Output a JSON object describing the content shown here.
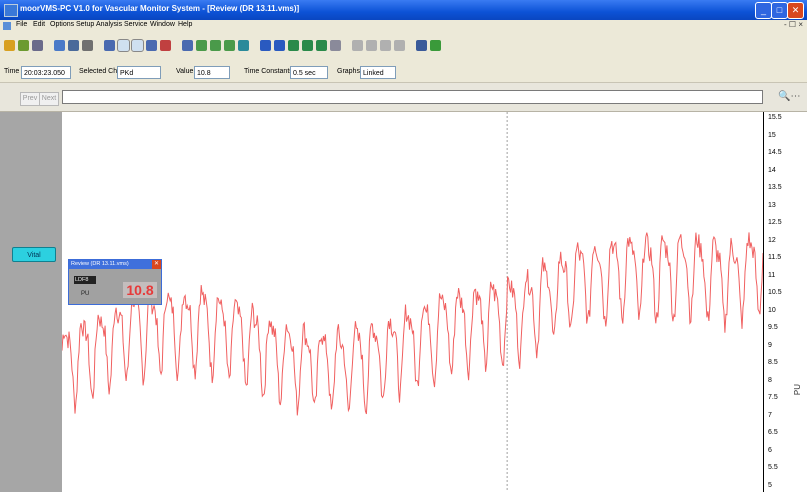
{
  "window": {
    "title": "moorVMS-PC V1.0 for Vascular Monitor System - [Review (DR 13.11.vms)]",
    "controls": {
      "minimize": "_",
      "maximize": "□",
      "close": "✕"
    }
  },
  "menu": {
    "items": [
      "File",
      "Edit",
      "Options",
      "Setup",
      "Analysis",
      "Service",
      "Window",
      "Help"
    ],
    "mdi_controls": "- ☐ ×"
  },
  "toolbar": {
    "groups": [
      {
        "buttons": [
          {
            "icon": "gear-icon",
            "color": "#d8a020"
          },
          {
            "icon": "data-icon",
            "color": "#6c9a30"
          },
          {
            "icon": "archive-icon",
            "color": "#6a6a8a"
          }
        ]
      },
      {
        "buttons": [
          {
            "icon": "display-icon",
            "color": "#4a7ac8"
          },
          {
            "icon": "list-icon",
            "color": "#4a6a9a"
          },
          {
            "icon": "print-icon",
            "color": "#707070"
          }
        ]
      },
      {
        "buttons": [
          {
            "icon": "trace-icon",
            "color": "#4a6ab0"
          },
          {
            "icon": "trace-overlay-icon",
            "color": "#4a6ab0",
            "pressed": true
          },
          {
            "icon": "trace-split-icon",
            "color": "#4a6ab0",
            "pressed": true
          },
          {
            "icon": "marker-icon",
            "color": "#4a6ab0"
          },
          {
            "icon": "scale-icon",
            "color": "#c04040"
          }
        ]
      },
      {
        "buttons": [
          {
            "icon": "compress-icon",
            "color": "#4a6ab0"
          },
          {
            "icon": "zoom-out-icon",
            "color": "#4a9a4a"
          },
          {
            "icon": "zoom-in-icon",
            "color": "#4a9a4a"
          },
          {
            "icon": "zoom-region-icon",
            "color": "#4a9a4a"
          },
          {
            "icon": "arrow-down-icon",
            "color": "#2a8a9a"
          }
        ]
      },
      {
        "buttons": [
          {
            "icon": "to-icon",
            "color": "#2a5ac0"
          },
          {
            "icon": "tc-icon",
            "color": "#2a5ac0"
          },
          {
            "icon": "flow-marker-icon",
            "color": "#2a8a4a"
          },
          {
            "icon": "flow-marker-icon",
            "color": "#2a8a4a"
          },
          {
            "icon": "flow-compare-icon",
            "color": "#2a8a4a"
          },
          {
            "icon": "flow-scale-icon",
            "color": "#8a8a9a"
          }
        ]
      },
      {
        "buttons": [
          {
            "icon": "page-icon",
            "color": "#b0b0b0"
          },
          {
            "icon": "grid-icon",
            "color": "#b0b0b0"
          },
          {
            "icon": "table-icon",
            "color": "#b0b0b0"
          },
          {
            "icon": "calc-icon",
            "color": "#b0b0b0"
          }
        ]
      },
      {
        "buttons": [
          {
            "icon": "printer-icon",
            "color": "#3a5a9a"
          },
          {
            "icon": "globe-icon",
            "color": "#3a9a3a"
          }
        ]
      }
    ]
  },
  "fields": [
    {
      "label": "Time",
      "value": "20:03:23.050"
    },
    {
      "label": "Selected Ch",
      "value": "PKd"
    },
    {
      "label": "Value",
      "value": "10.8"
    },
    {
      "label": "Time Constants",
      "value": "0.5 sec"
    },
    {
      "label": "Graphs",
      "value": "Linked"
    }
  ],
  "navigation": {
    "prev_label": "Prev",
    "next_label": "Next",
    "search_icon": "binoculars-icon"
  },
  "left_panel": {
    "channel_button": "Vital"
  },
  "channel_panel": {
    "title": "Review (DR 13.11.vms)",
    "tag": "LDF8",
    "unit": "PU",
    "value": "10.8",
    "close": "✕"
  },
  "axis": {
    "unit_label": "PU",
    "ticks": [
      "15.5",
      "15",
      "14.5",
      "14",
      "13.5",
      "13",
      "12.5",
      "12",
      "11.5",
      "11",
      "10.5",
      "10",
      "9.5",
      "9",
      "8.5",
      "8",
      "7.5",
      "7",
      "6.5",
      "6",
      "5.5",
      "5"
    ]
  },
  "colors": {
    "trace": "#f06060",
    "plot_background": "#ffffff",
    "cursor_line": "#a0a0a0"
  },
  "trace": {
    "y_range": [
      5,
      15.5
    ],
    "cursor_fraction": 0.635,
    "baseline": [
      [
        0.0,
        8.6
      ],
      [
        0.05,
        9.0
      ],
      [
        0.1,
        9.5
      ],
      [
        0.15,
        9.6
      ],
      [
        0.2,
        9.7
      ],
      [
        0.25,
        9.3
      ],
      [
        0.3,
        8.9
      ],
      [
        0.35,
        8.6
      ],
      [
        0.4,
        8.5
      ],
      [
        0.45,
        8.8
      ],
      [
        0.5,
        9.2
      ],
      [
        0.55,
        9.6
      ],
      [
        0.6,
        9.8
      ],
      [
        0.65,
        10.0
      ],
      [
        0.7,
        10.5
      ],
      [
        0.75,
        11.0
      ],
      [
        0.8,
        11.1
      ],
      [
        0.85,
        11.1
      ],
      [
        0.9,
        11.2
      ],
      [
        0.95,
        10.9
      ],
      [
        1.0,
        11.3
      ]
    ],
    "oscillation_amplitude": 1.0,
    "oscillation_cycles": 41,
    "noise_amplitude": 0.3
  }
}
